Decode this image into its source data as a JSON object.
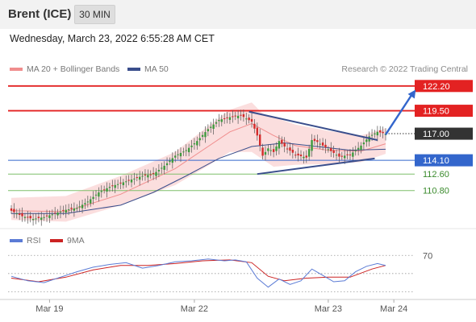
{
  "header": {
    "instrument": "Brent (ICE)",
    "timeframe": "30 MIN"
  },
  "datetime": "Wednesday, March 23, 2022 6:55:28 AM CET",
  "copyright": "Research © 2022 Trading Central",
  "colors": {
    "resistance": "#e32222",
    "support": "#7fbf6a",
    "pivot": "#3366cc",
    "pattern": "#3a4e8c",
    "bollinger": "#f9c8c8",
    "ma20": "#f08d8d",
    "ma50": "#3a4e8c",
    "candle_up": "#3d9a3d",
    "candle_down": "#d42a2a",
    "current_price_bg": "#333333",
    "rsi": "#5b7bd5",
    "rsi_ma": "#cc2222"
  },
  "chart_data": [
    {
      "type": "candlestick",
      "title": "Brent (ICE) 30 MIN",
      "ylim": [
        107.0,
        123.5
      ],
      "x_ticks": [
        "Mar 19",
        "Mar 22",
        "Mar 23",
        "Mar 24"
      ],
      "legend": [
        {
          "name": "MA 20 + Bollinger Bands",
          "color": "#f08d8d"
        },
        {
          "name": "MA 50",
          "color": "#3a4e8c"
        }
      ],
      "levels": [
        {
          "value": 122.2,
          "label": "122.20",
          "role": "resistance"
        },
        {
          "value": 119.5,
          "label": "119.50",
          "role": "resistance"
        },
        {
          "value": 117.0,
          "label": "117.00",
          "role": "current"
        },
        {
          "value": 114.1,
          "label": "114.10",
          "role": "pivot"
        },
        {
          "value": 112.6,
          "label": "112.60",
          "role": "support"
        },
        {
          "value": 110.8,
          "label": "110.80",
          "role": "support"
        }
      ],
      "price_path": [
        [
          0,
          108.6
        ],
        [
          4,
          108.0
        ],
        [
          8,
          107.7
        ],
        [
          12,
          107.9
        ],
        [
          16,
          108.3
        ],
        [
          20,
          108.7
        ],
        [
          24,
          108.9
        ],
        [
          28,
          109.6
        ],
        [
          32,
          110.6
        ],
        [
          36,
          111.2
        ],
        [
          40,
          111.6
        ],
        [
          44,
          112.0
        ],
        [
          48,
          112.4
        ],
        [
          52,
          112.6
        ],
        [
          56,
          113.5
        ],
        [
          60,
          114.6
        ],
        [
          64,
          115.2
        ],
        [
          68,
          116.2
        ],
        [
          72,
          117.5
        ],
        [
          76,
          118.5
        ],
        [
          80,
          118.8
        ],
        [
          84,
          119.0
        ],
        [
          88,
          118.3
        ],
        [
          90,
          116.8
        ],
        [
          92,
          114.6
        ],
        [
          94,
          115.4
        ],
        [
          96,
          115.0
        ],
        [
          98,
          116.2
        ],
        [
          100,
          115.6
        ],
        [
          104,
          114.7
        ],
        [
          108,
          114.4
        ],
        [
          110,
          116.3
        ],
        [
          112,
          116.1
        ],
        [
          116,
          115.3
        ],
        [
          120,
          114.5
        ],
        [
          124,
          114.7
        ],
        [
          128,
          115.7
        ],
        [
          131,
          116.7
        ],
        [
          134,
          117.2
        ],
        [
          137,
          117.0
        ]
      ],
      "bollinger": {
        "upper": [
          [
            0,
            110.0
          ],
          [
            20,
            110.2
          ],
          [
            40,
            112.4
          ],
          [
            60,
            115.0
          ],
          [
            72,
            117.8
          ],
          [
            80,
            119.6
          ],
          [
            88,
            120.4
          ],
          [
            92,
            119.2
          ],
          [
            104,
            118.0
          ],
          [
            116,
            117.3
          ],
          [
            128,
            116.8
          ],
          [
            137,
            117.6
          ]
        ],
        "lower": [
          [
            0,
            107.6
          ],
          [
            20,
            107.4
          ],
          [
            40,
            109.2
          ],
          [
            60,
            111.4
          ],
          [
            72,
            113.5
          ],
          [
            80,
            115.0
          ],
          [
            88,
            115.0
          ],
          [
            96,
            113.4
          ],
          [
            104,
            113.6
          ],
          [
            116,
            113.7
          ],
          [
            128,
            113.9
          ],
          [
            137,
            114.8
          ]
        ]
      },
      "ma20": [
        [
          0,
          108.6
        ],
        [
          20,
          108.5
        ],
        [
          40,
          110.4
        ],
        [
          60,
          113.2
        ],
        [
          72,
          115.6
        ],
        [
          80,
          117.2
        ],
        [
          88,
          118.1
        ],
        [
          96,
          116.8
        ],
        [
          104,
          115.7
        ],
        [
          116,
          115.2
        ],
        [
          128,
          115.1
        ],
        [
          137,
          115.9
        ]
      ],
      "ma50": [
        [
          0,
          108.3
        ],
        [
          20,
          108.3
        ],
        [
          40,
          109.2
        ],
        [
          52,
          110.6
        ],
        [
          64,
          112.4
        ],
        [
          76,
          114.3
        ],
        [
          88,
          115.6
        ],
        [
          100,
          116.0
        ],
        [
          112,
          115.6
        ],
        [
          124,
          115.2
        ],
        [
          137,
          115.3
        ]
      ],
      "pattern": {
        "upper_trendline": [
          [
            87,
            119.4
          ],
          [
            134,
            116.3
          ]
        ],
        "lower_trendline": [
          [
            90,
            112.6
          ],
          [
            133,
            114.3
          ]
        ],
        "projection_arrow": [
          [
            137,
            116.9
          ],
          [
            148,
            121.8
          ]
        ]
      }
    },
    {
      "type": "line",
      "legend": [
        {
          "name": "RSI",
          "color": "#5b7bd5"
        },
        {
          "name": "9MA",
          "color": "#cc2222"
        }
      ],
      "ylim": [
        25,
        80
      ],
      "reference_levels": [
        70
      ],
      "rsi": [
        [
          0,
          47
        ],
        [
          6,
          42
        ],
        [
          12,
          40
        ],
        [
          18,
          46
        ],
        [
          24,
          52
        ],
        [
          30,
          57
        ],
        [
          36,
          60
        ],
        [
          42,
          62
        ],
        [
          48,
          56
        ],
        [
          54,
          59
        ],
        [
          60,
          63
        ],
        [
          66,
          64
        ],
        [
          72,
          66
        ],
        [
          78,
          64
        ],
        [
          82,
          65
        ],
        [
          86,
          63
        ],
        [
          90,
          45
        ],
        [
          94,
          35
        ],
        [
          98,
          44
        ],
        [
          102,
          38
        ],
        [
          106,
          42
        ],
        [
          110,
          55
        ],
        [
          114,
          48
        ],
        [
          118,
          41
        ],
        [
          122,
          42
        ],
        [
          126,
          52
        ],
        [
          130,
          58
        ],
        [
          134,
          61
        ],
        [
          137,
          59
        ]
      ],
      "rsi_ma": [
        [
          0,
          45
        ],
        [
          10,
          41
        ],
        [
          20,
          46
        ],
        [
          30,
          54
        ],
        [
          40,
          59
        ],
        [
          50,
          59
        ],
        [
          60,
          61
        ],
        [
          70,
          64
        ],
        [
          80,
          65
        ],
        [
          88,
          62
        ],
        [
          94,
          47
        ],
        [
          100,
          42
        ],
        [
          108,
          45
        ],
        [
          116,
          46
        ],
        [
          124,
          46
        ],
        [
          132,
          55
        ],
        [
          137,
          59
        ]
      ]
    }
  ]
}
